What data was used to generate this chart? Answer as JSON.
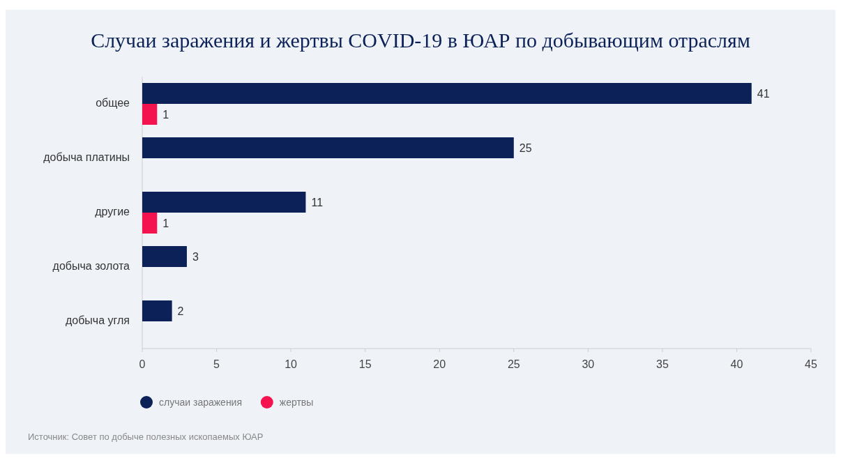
{
  "chart_data": {
    "type": "bar",
    "orientation": "horizontal",
    "title": "Случаи заражения и жертвы COVID-19 в ЮАР по добывающим отраслям",
    "categories": [
      "общее",
      "добыча платины",
      "другие",
      "добыча золота",
      "добыча угля"
    ],
    "series": [
      {
        "name": "случаи заражения",
        "color": "#0b2157",
        "values": [
          41,
          25,
          11,
          3,
          2
        ]
      },
      {
        "name": "жертвы",
        "color": "#f5134f",
        "values": [
          1,
          null,
          1,
          null,
          null
        ]
      }
    ],
    "xlim": [
      0,
      45
    ],
    "xticks": [
      0,
      5,
      10,
      15,
      20,
      25,
      30,
      35,
      40,
      45
    ],
    "data_labels": true,
    "legend": "bottom",
    "grid": false,
    "annotations": [
      "Источник: Совет по добыче полезных ископаемых ЮАР"
    ]
  }
}
